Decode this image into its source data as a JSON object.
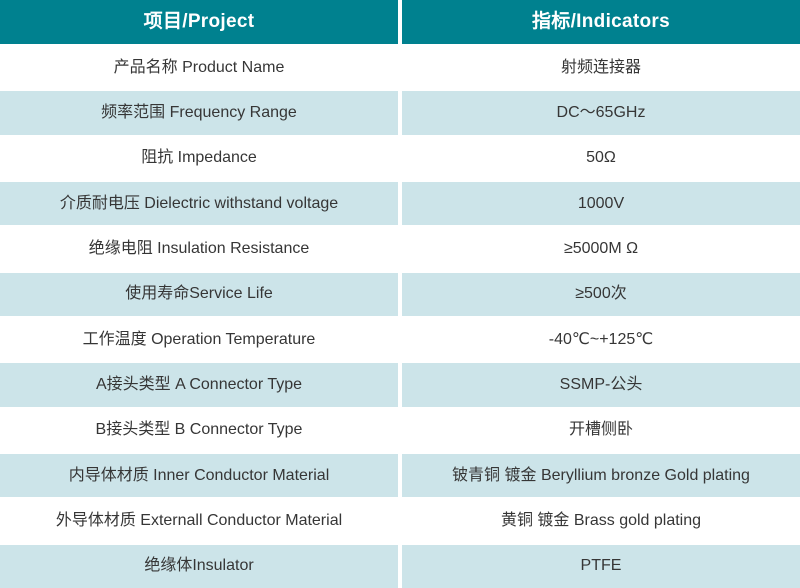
{
  "table": {
    "accent_color": "#00818F",
    "stripe_color": "#CCE4E9",
    "header": {
      "project": "项目/Project",
      "indicators": "指标/Indicators"
    },
    "rows": [
      {
        "project": "产品名称 Product Name",
        "indicator": "射频连接器"
      },
      {
        "project": "频率范围 Frequency Range",
        "indicator": "DC～65GHz"
      },
      {
        "project": "阻抗 Impedance",
        "indicator": "50Ω"
      },
      {
        "project": "介质耐电压 Dielectric withstand voltage",
        "indicator": "1000V"
      },
      {
        "project": "绝缘电阻 Insulation Resistance",
        "indicator": "≥5000M Ω"
      },
      {
        "project": "使用寿命Service Life",
        "indicator": "≥500次"
      },
      {
        "project": "工作温度 Operation Temperature",
        "indicator": "-40℃~+125℃"
      },
      {
        "project": "A接头类型 A Connector Type",
        "indicator": "SSMP-公头"
      },
      {
        "project": "B接头类型 B Connector Type",
        "indicator": "开槽侧卧"
      },
      {
        "project": "内导体材质 Inner Conductor Material",
        "indicator": "铍青铜 镀金 Beryllium bronze Gold plating"
      },
      {
        "project": "外导体材质 Externall Conductor Material",
        "indicator": "黄铜 镀金 Brass gold plating"
      },
      {
        "project": "绝缘体Insulator",
        "indicator": "PTFE"
      }
    ]
  }
}
